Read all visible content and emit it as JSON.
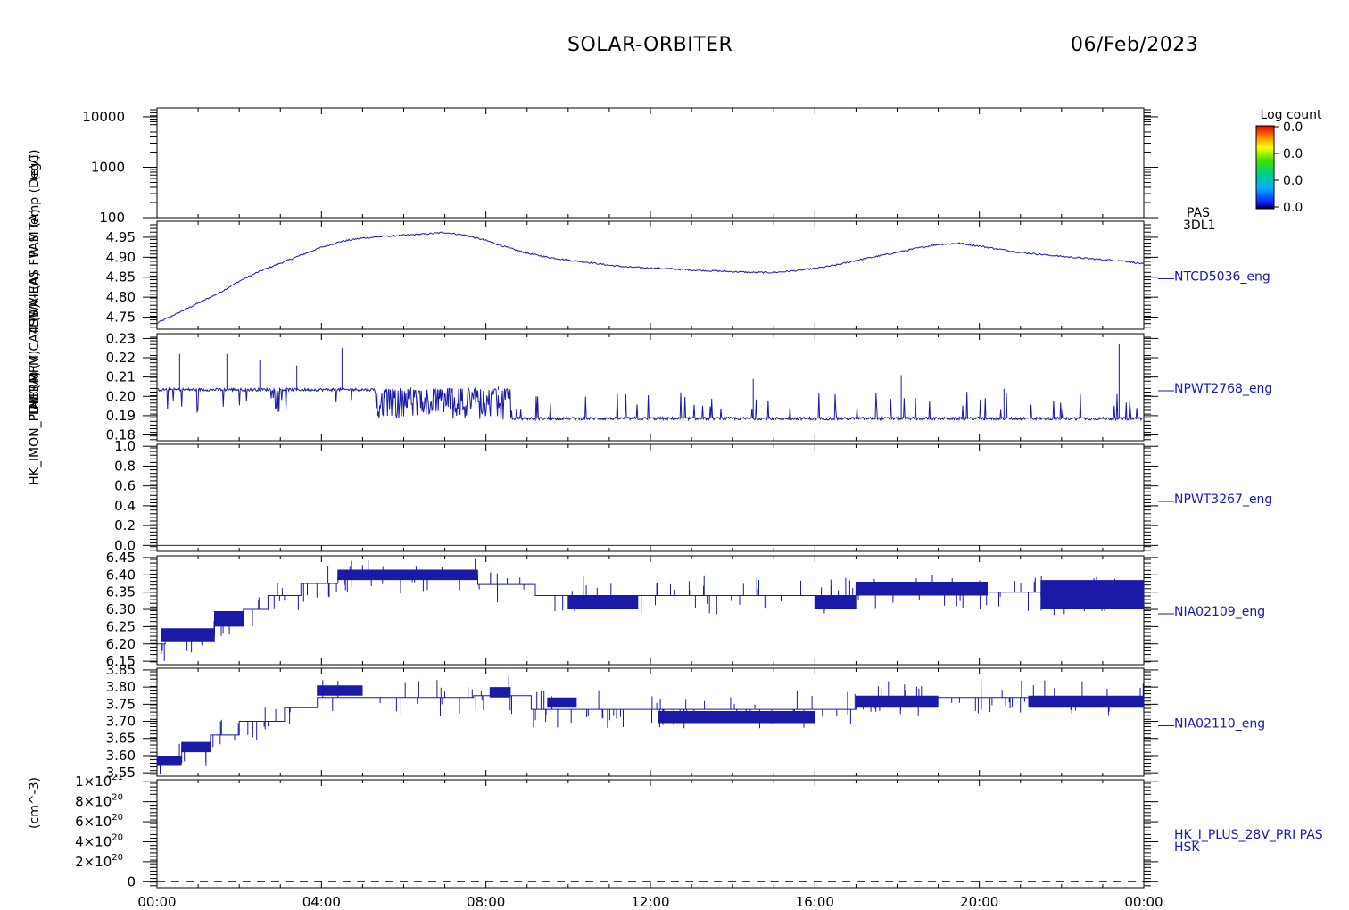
{
  "title": "SOLAR-ORBITER",
  "date": "06/Feb/2023",
  "x_axis": {
    "tick_labels": [
      "00:00",
      "04:00",
      "08:00",
      "12:00",
      "16:00",
      "20:00",
      "00:00"
    ]
  },
  "colorbar": {
    "title": "Log count",
    "labels": [
      "0.0",
      "0.0",
      "0.0",
      "0.0"
    ]
  },
  "y_axis_titles_overlapping": [
    "(eV)",
    "PAS Temp (DegC)",
    "SWA-EAS FW M (A)",
    "TDS VI (A)",
    "ALC RFM CA4 (V)",
    "THERM (V)",
    "HK_IMON_PDM (A)",
    "(cm^-3)"
  ],
  "chart_data": [
    {
      "type": "heatmap",
      "panel": "PAS energy spectrogram",
      "ylabel": "(eV)",
      "yscale": "log",
      "ylim": [
        100,
        15000
      ],
      "yticks": [
        "10000",
        "1000",
        "100"
      ],
      "right_label": [
        "PAS",
        "3DL1"
      ],
      "values": "empty"
    },
    {
      "type": "line",
      "series_label": "NTCD5036_eng",
      "yticks": [
        "4.95",
        "4.90",
        "4.85",
        "4.80",
        "4.75"
      ],
      "ylim": [
        4.72,
        4.99
      ],
      "color": "#1a1aa6",
      "x_hours": [
        0,
        0.5,
        1,
        1.5,
        2,
        2.5,
        3,
        3.5,
        4,
        4.5,
        5,
        5.5,
        6,
        6.5,
        7,
        7.5,
        8,
        8.5,
        9,
        9.5,
        10,
        10.5,
        11,
        11.5,
        12,
        12.5,
        13,
        13.5,
        14,
        14.5,
        15,
        15.5,
        16,
        16.5,
        17,
        17.5,
        18,
        18.5,
        19,
        19.5,
        20,
        20.5,
        21,
        21.5,
        22,
        22.5,
        23,
        23.5,
        24
      ],
      "values": [
        4.735,
        4.76,
        4.785,
        4.81,
        4.84,
        4.865,
        4.885,
        4.905,
        4.925,
        4.94,
        4.948,
        4.952,
        4.955,
        4.958,
        4.962,
        4.955,
        4.942,
        4.925,
        4.91,
        4.9,
        4.893,
        4.887,
        4.88,
        4.875,
        4.873,
        4.871,
        4.868,
        4.866,
        4.864,
        4.862,
        4.862,
        4.866,
        4.872,
        4.88,
        4.892,
        4.902,
        4.912,
        4.923,
        4.932,
        4.935,
        4.928,
        4.92,
        4.912,
        4.907,
        4.902,
        4.898,
        4.894,
        4.891,
        4.883
      ]
    },
    {
      "type": "line",
      "series_label": "NPWT2768_eng",
      "yticks": [
        "0.23",
        "0.22",
        "0.21",
        "0.20",
        "0.19",
        "0.18"
      ],
      "ylim": [
        0.177,
        0.2325
      ],
      "color": "#1a1aa6",
      "baseline_segments": [
        {
          "from_hour": 0,
          "to_hour": 8.6,
          "value": 0.2035
        },
        {
          "from_hour": 8.6,
          "to_hour": 24,
          "value": 0.1885
        }
      ],
      "dense_band": {
        "from_hour": 5.3,
        "to_hour": 8.6,
        "low": 0.188,
        "high": 0.204
      },
      "spikes_hours": [
        0.55,
        1.7,
        2.5,
        3.4,
        4.5,
        8.3,
        14.5,
        18.1,
        20.6,
        23.4
      ],
      "spikes_values": [
        0.222,
        0.222,
        0.219,
        0.216,
        0.225,
        0.205,
        0.209,
        0.211,
        0.204,
        0.227
      ]
    },
    {
      "type": "line",
      "series_label": "NPWT3267_eng",
      "yticks": [
        "1.0",
        "0.8",
        "0.6",
        "0.4",
        "0.2",
        "0.0"
      ],
      "ylim": [
        -0.06,
        1.02
      ],
      "color": "#1a1aa6",
      "values": "constant 0.0"
    },
    {
      "type": "line",
      "series_label": "NIA02109_eng",
      "yticks": [
        "6.45",
        "6.40",
        "6.35",
        "6.30",
        "6.25",
        "6.20",
        "6.15"
      ],
      "ylim": [
        6.14,
        6.455
      ],
      "color": "#1a1aa6",
      "baseline_segments": [
        {
          "from_hour": 0,
          "to_hour": 0.2,
          "value": 6.2
        },
        {
          "from_hour": 0.2,
          "to_hour": 1.4,
          "value": 6.225
        },
        {
          "from_hour": 1.4,
          "to_hour": 2.1,
          "value": 6.272
        },
        {
          "from_hour": 2.1,
          "to_hour": 2.7,
          "value": 6.3
        },
        {
          "from_hour": 2.7,
          "to_hour": 3.5,
          "value": 6.34
        },
        {
          "from_hour": 3.5,
          "to_hour": 4.4,
          "value": 6.375
        },
        {
          "from_hour": 4.4,
          "to_hour": 7.8,
          "value": 6.4
        },
        {
          "from_hour": 7.8,
          "to_hour": 9.2,
          "value": 6.372
        },
        {
          "from_hour": 9.2,
          "to_hour": 17.0,
          "value": 6.34
        },
        {
          "from_hour": 17.0,
          "to_hour": 21.5,
          "value": 6.35
        },
        {
          "from_hour": 21.5,
          "to_hour": 24,
          "value": 6.34
        }
      ],
      "dense_bands": [
        {
          "from_hour": 0.1,
          "to_hour": 1.4,
          "low": 6.205,
          "high": 6.245
        },
        {
          "from_hour": 1.4,
          "to_hour": 2.1,
          "low": 6.25,
          "high": 6.295
        },
        {
          "from_hour": 4.4,
          "to_hour": 7.8,
          "low": 6.385,
          "high": 6.415
        },
        {
          "from_hour": 10.0,
          "to_hour": 11.7,
          "low": 6.3,
          "high": 6.34
        },
        {
          "from_hour": 16.0,
          "to_hour": 17.0,
          "low": 6.3,
          "high": 6.34
        },
        {
          "from_hour": 17.0,
          "to_hour": 20.2,
          "low": 6.34,
          "high": 6.38
        },
        {
          "from_hour": 21.5,
          "to_hour": 24,
          "low": 6.3,
          "high": 6.385
        }
      ]
    },
    {
      "type": "line",
      "series_label": "NIA02110_eng",
      "yticks": [
        "3.85",
        "3.80",
        "3.75",
        "3.70",
        "3.65",
        "3.60",
        "3.55"
      ],
      "ylim": [
        3.54,
        3.855
      ],
      "color": "#1a1aa6",
      "baseline_segments": [
        {
          "from_hour": 0,
          "to_hour": 0.6,
          "value": 3.58
        },
        {
          "from_hour": 0.6,
          "to_hour": 1.3,
          "value": 3.62
        },
        {
          "from_hour": 1.3,
          "to_hour": 2.0,
          "value": 3.66
        },
        {
          "from_hour": 2.0,
          "to_hour": 3.1,
          "value": 3.7
        },
        {
          "from_hour": 3.1,
          "to_hour": 3.9,
          "value": 3.74
        },
        {
          "from_hour": 3.9,
          "to_hour": 7.7,
          "value": 3.77
        },
        {
          "from_hour": 7.7,
          "to_hour": 9.1,
          "value": 3.775
        },
        {
          "from_hour": 9.1,
          "to_hour": 17.0,
          "value": 3.735
        },
        {
          "from_hour": 17.0,
          "to_hour": 24,
          "value": 3.77
        }
      ],
      "dense_bands": [
        {
          "from_hour": 0,
          "to_hour": 0.6,
          "low": 3.57,
          "high": 3.6
        },
        {
          "from_hour": 0.6,
          "to_hour": 1.3,
          "low": 3.61,
          "high": 3.64
        },
        {
          "from_hour": 3.9,
          "to_hour": 5.0,
          "low": 3.775,
          "high": 3.805
        },
        {
          "from_hour": 8.1,
          "to_hour": 8.6,
          "low": 3.77,
          "high": 3.8
        },
        {
          "from_hour": 9.5,
          "to_hour": 10.2,
          "low": 3.74,
          "high": 3.77
        },
        {
          "from_hour": 12.2,
          "to_hour": 16.0,
          "low": 3.695,
          "high": 3.73
        },
        {
          "from_hour": 17.0,
          "to_hour": 19.0,
          "low": 3.74,
          "high": 3.775
        },
        {
          "from_hour": 21.2,
          "to_hour": 24,
          "low": 3.74,
          "high": 3.775
        }
      ]
    },
    {
      "type": "line",
      "series_label": [
        "HK_I_PLUS_28V_PRI PAS",
        "HSK"
      ],
      "yticks": [
        {
          "mant": "1×10",
          "exp": "21"
        },
        {
          "mant": "8×10",
          "exp": "20"
        },
        {
          "mant": "6×10",
          "exp": "20"
        },
        {
          "mant": "4×10",
          "exp": "20"
        },
        {
          "mant": "2×10",
          "exp": "20"
        },
        {
          "mant": "0",
          "exp": ""
        }
      ],
      "ylim": [
        -6e+19,
        1.02e+21
      ],
      "color": "#000000",
      "style": "dashed",
      "values": "constant 0"
    }
  ]
}
